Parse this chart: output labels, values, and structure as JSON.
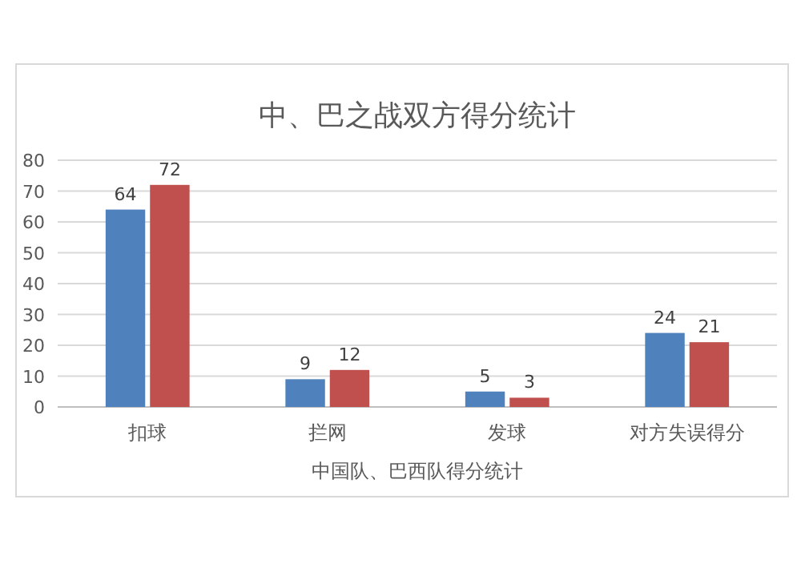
{
  "chart_data": {
    "type": "bar",
    "title": "中、巴之战双方得分统计",
    "xlabel": "中国队、巴西队得分统计",
    "categories": [
      "扣球",
      "拦网",
      "发球",
      "对方失误得分"
    ],
    "series": [
      {
        "color": "#4f81bd",
        "values": [
          64,
          9,
          5,
          24
        ]
      },
      {
        "color": "#c0504d",
        "values": [
          72,
          12,
          3,
          21
        ]
      }
    ],
    "ylim": [
      0,
      80
    ],
    "yticks": [
      0,
      10,
      20,
      30,
      40,
      50,
      60,
      70,
      80
    ],
    "grid": "y",
    "data_labels": true
  }
}
